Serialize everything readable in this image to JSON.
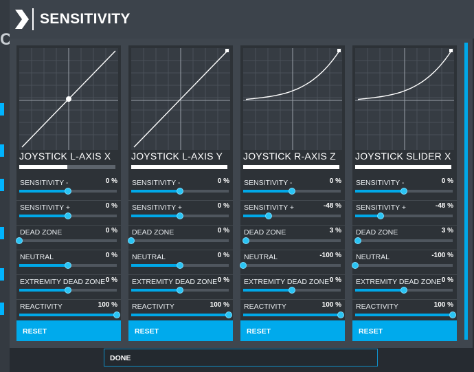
{
  "header": {
    "title": "SENSITIVITY"
  },
  "background": {
    "partial_letter": "C"
  },
  "colors": {
    "accent": "#00aaec",
    "panel": "#3f464e",
    "column": "#2d3237"
  },
  "axes": [
    {
      "name": "JOYSTICK L-AXIS X",
      "curve": "linear-with-neutral",
      "axis_bar_fill": 0.5,
      "settings": [
        {
          "label": "SENSITIVITY -",
          "value": "0 %",
          "level": 0.5
        },
        {
          "label": "SENSITIVITY +",
          "value": "0 %",
          "level": 0.5
        },
        {
          "label": "DEAD ZONE",
          "value": "0 %",
          "level": 0.0
        },
        {
          "label": "NEUTRAL",
          "value": "0 %",
          "level": 0.5
        },
        {
          "label": "EXTREMITY DEAD ZONE",
          "value": "0 %",
          "level": 0.5
        },
        {
          "label": "REACTIVITY",
          "value": "100 %",
          "level": 1.0
        }
      ],
      "reset_label": "RESET"
    },
    {
      "name": "JOYSTICK L-AXIS Y",
      "curve": "linear",
      "axis_bar_fill": 1.0,
      "settings": [
        {
          "label": "SENSITIVITY -",
          "value": "0 %",
          "level": 0.5
        },
        {
          "label": "SENSITIVITY +",
          "value": "0 %",
          "level": 0.5
        },
        {
          "label": "DEAD ZONE",
          "value": "0 %",
          "level": 0.0
        },
        {
          "label": "NEUTRAL",
          "value": "0 %",
          "level": 0.5
        },
        {
          "label": "EXTREMITY DEAD ZONE",
          "value": "0 %",
          "level": 0.5
        },
        {
          "label": "REACTIVITY",
          "value": "100 %",
          "level": 1.0
        }
      ],
      "reset_label": "RESET"
    },
    {
      "name": "JOYSTICK R-AXIS Z",
      "curve": "exponential",
      "axis_bar_fill": 1.0,
      "settings": [
        {
          "label": "SENSITIVITY -",
          "value": "0 %",
          "level": 0.5
        },
        {
          "label": "SENSITIVITY +",
          "value": "-48 %",
          "level": 0.26
        },
        {
          "label": "DEAD ZONE",
          "value": "3 %",
          "level": 0.03
        },
        {
          "label": "NEUTRAL",
          "value": "-100 %",
          "level": 0.0
        },
        {
          "label": "EXTREMITY DEAD ZONE",
          "value": "0 %",
          "level": 0.5
        },
        {
          "label": "REACTIVITY",
          "value": "100 %",
          "level": 1.0
        }
      ],
      "reset_label": "RESET"
    },
    {
      "name": "JOYSTICK SLIDER X",
      "curve": "exponential",
      "axis_bar_fill": 1.0,
      "settings": [
        {
          "label": "SENSITIVITY -",
          "value": "0 %",
          "level": 0.5
        },
        {
          "label": "SENSITIVITY +",
          "value": "-48 %",
          "level": 0.26
        },
        {
          "label": "DEAD ZONE",
          "value": "3 %",
          "level": 0.03
        },
        {
          "label": "NEUTRAL",
          "value": "-100 %",
          "level": 0.0
        },
        {
          "label": "EXTREMITY DEAD ZONE",
          "value": "0 %",
          "level": 0.5
        },
        {
          "label": "REACTIVITY",
          "value": "100 %",
          "level": 1.0
        }
      ],
      "reset_label": "RESET"
    }
  ],
  "footer": {
    "done_label": "DONE"
  }
}
